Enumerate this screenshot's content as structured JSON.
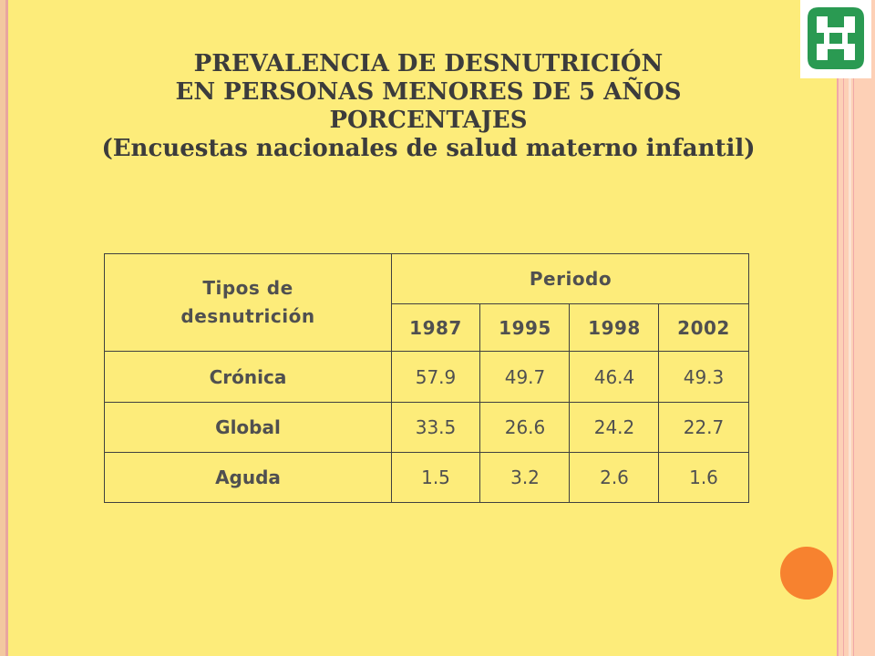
{
  "title_lines": [
    "PREVALENCIA DE DESNUTRICIÓN",
    "EN PERSONAS MENORES DE 5 AÑOS",
    "PORCENTAJES",
    "(Encuestas nacionales de salud materno infantil)"
  ],
  "table": {
    "type_header_lines": [
      "Tipos de",
      "desnutrición"
    ],
    "period_header": "Periodo",
    "years": [
      "1987",
      "1995",
      "1998",
      "2002"
    ],
    "rows": [
      {
        "label": "Crónica",
        "values": [
          "57.9",
          "49.7",
          "46.4",
          "49.3"
        ]
      },
      {
        "label": "Global",
        "values": [
          "33.5",
          "26.6",
          "24.2",
          "22.7"
        ]
      },
      {
        "label": "Aguda",
        "values": [
          "1.5",
          "3.2",
          "2.6",
          "1.6"
        ]
      }
    ]
  },
  "logo": {
    "icon": "institution-logo-icon",
    "color": "#2a9a52"
  },
  "colors": {
    "background": "#fdec7a",
    "accent": "#f7822f",
    "side_band": "#fdd0b6"
  }
}
